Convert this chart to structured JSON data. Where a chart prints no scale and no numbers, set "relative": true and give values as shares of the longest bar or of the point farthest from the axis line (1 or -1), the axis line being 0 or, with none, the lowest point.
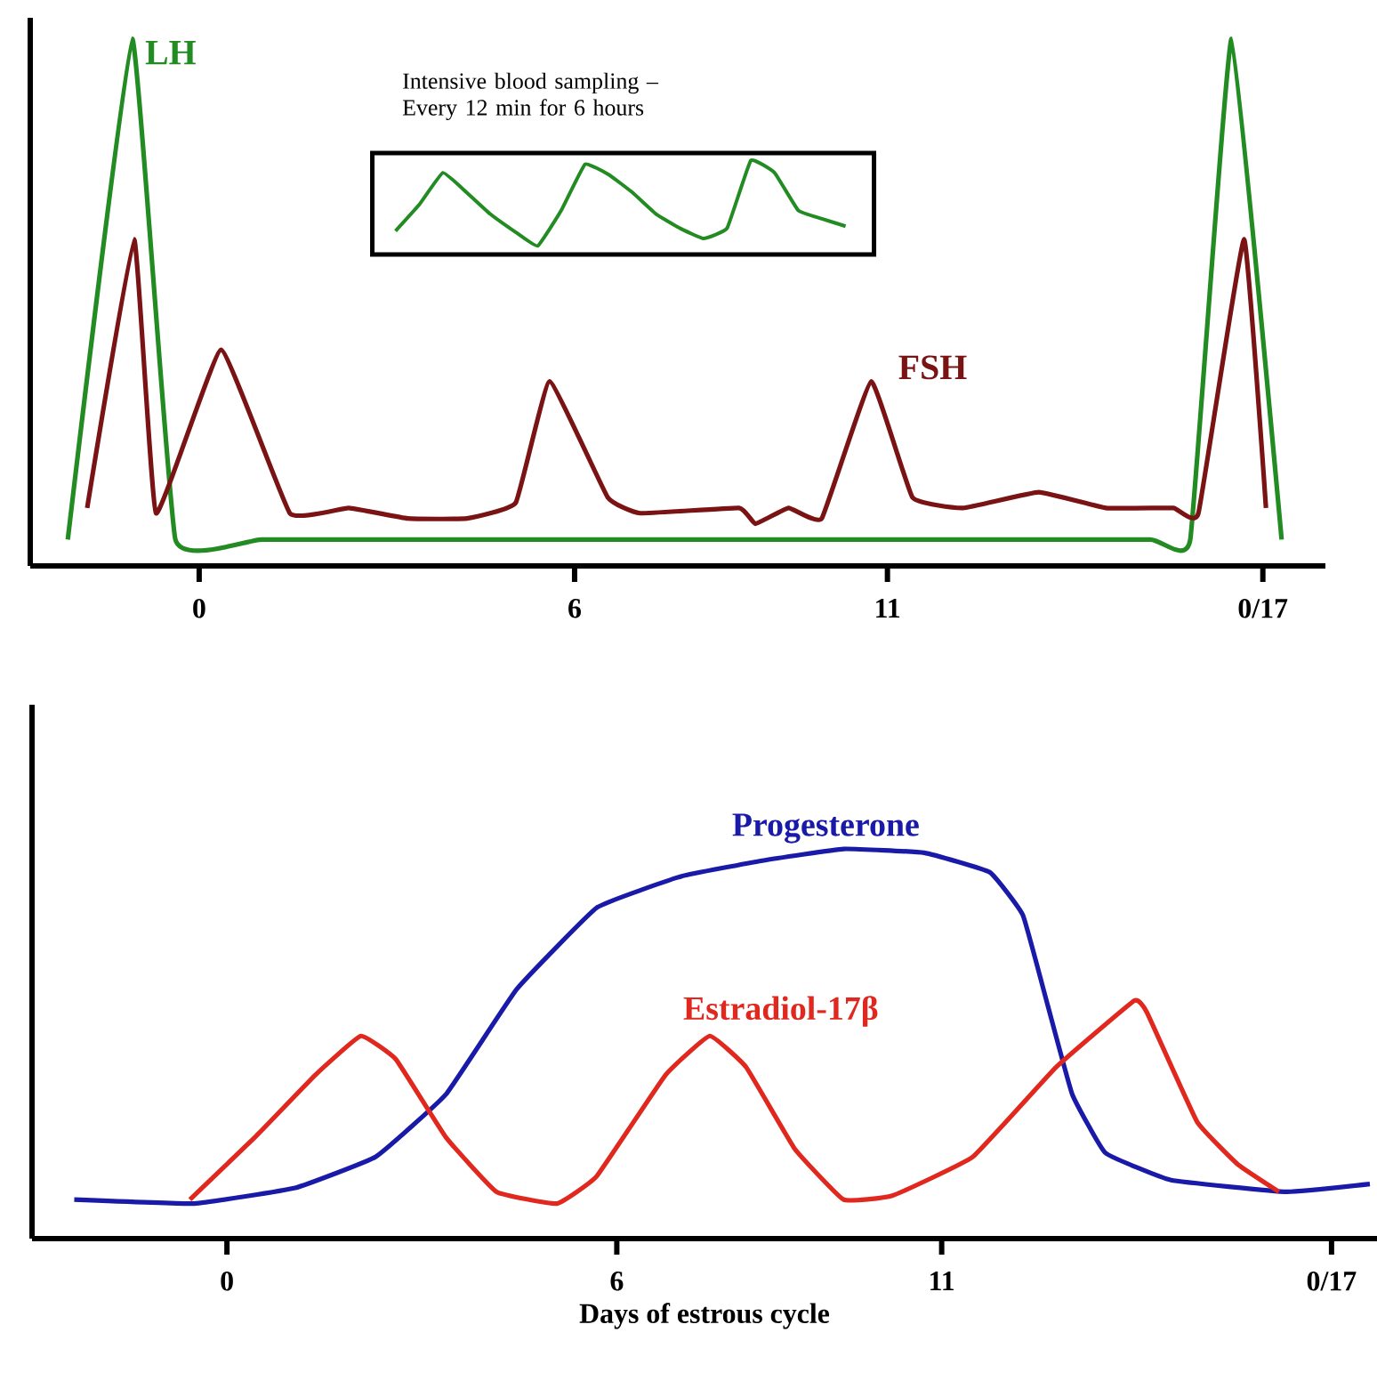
{
  "chart_data": [
    {
      "type": "line",
      "relative": true,
      "xlim": [
        -2.7,
        18
      ],
      "xticks": [
        0,
        6,
        11,
        {
          "value": 17,
          "label": "0/17"
        }
      ],
      "annotations": [
        "Intensive blood sampling – Every 12 min for 6 hours"
      ],
      "series": [
        {
          "name": "LH",
          "color": "#228b22",
          "x": [
            -2.1,
            -1.07,
            -0.38,
            1,
            4,
            8,
            12,
            15.2,
            15.84,
            16.5,
            17.3
          ],
          "values": [
            0.05,
            1,
            0.05,
            0.05,
            0.05,
            0.05,
            0.05,
            0.05,
            0.05,
            1,
            0.05
          ]
        },
        {
          "name": "FSH",
          "color": "#7a1414",
          "x": [
            -1.79,
            -1.04,
            -0.69,
            0.35,
            1.45,
            2.39,
            3.33,
            4.28,
            5.06,
            5.6,
            6.53,
            7.05,
            8.63,
            8.89,
            9.42,
            9.95,
            10.74,
            11.4,
            12.21,
            13.42,
            14.49,
            15.57,
            15.97,
            16.7,
            17.05
          ],
          "values": [
            0.11,
            0.62,
            0.1,
            0.41,
            0.1,
            0.11,
            0.09,
            0.09,
            0.12,
            0.35,
            0.13,
            0.1,
            0.11,
            0.08,
            0.11,
            0.09,
            0.35,
            0.13,
            0.11,
            0.14,
            0.11,
            0.11,
            0.1,
            0.62,
            0.11
          ]
        }
      ]
    },
    {
      "type": "line",
      "relative": true,
      "xlim": [
        -3,
        17.7
      ],
      "xticks": [
        0,
        6,
        11,
        {
          "value": 17,
          "label": "0/17"
        }
      ],
      "xlabel": "Days of estrous cycle",
      "series": [
        {
          "name": "Progesterone",
          "color": "#1a1aa8",
          "x": [
            -2.35,
            -0.5,
            1.05,
            2.29,
            3.37,
            4.46,
            5.7,
            7.0,
            8.24,
            9.49,
            10.73,
            11.74,
            12.25,
            12.63,
            13.01,
            13.52,
            14.53,
            16.31,
            17.59
          ],
          "values": [
            0.1,
            0.09,
            0.13,
            0.21,
            0.37,
            0.64,
            0.85,
            0.93,
            0.97,
            1,
            0.99,
            0.94,
            0.83,
            0.6,
            0.37,
            0.22,
            0.15,
            0.12,
            0.14
          ]
        },
        {
          "name": "Estradiol-17β",
          "color": "#e0281e",
          "x": [
            -0.57,
            0.43,
            1.36,
            2.06,
            2.6,
            3.37,
            4.15,
            5.08,
            5.69,
            6.75,
            7.43,
            7.99,
            8.74,
            9.49,
            10.24,
            11.48,
            12.76,
            13.96,
            14.16,
            14.93,
            15.56,
            16.19
          ],
          "values": [
            0.1,
            0.26,
            0.42,
            0.52,
            0.46,
            0.26,
            0.12,
            0.09,
            0.16,
            0.42,
            0.52,
            0.44,
            0.23,
            0.1,
            0.11,
            0.21,
            0.44,
            0.61,
            0.58,
            0.3,
            0.19,
            0.12
          ]
        }
      ]
    },
    {
      "type": "line",
      "relative": true,
      "categories": [
        null,
        null,
        null,
        null,
        null,
        null,
        null,
        null,
        null,
        null,
        null,
        null,
        null,
        null,
        null,
        null,
        null,
        null,
        null,
        null
      ],
      "series": [
        {
          "color": "#228b22",
          "values": [
            0.25,
            0.53,
            0.87,
            0.66,
            0.43,
            0.25,
            0.09,
            0.47,
            0.96,
            0.85,
            0.66,
            0.43,
            0.28,
            0.17,
            0.28,
            1,
            0.87,
            0.47,
            0.38,
            0.3
          ]
        }
      ]
    }
  ]
}
